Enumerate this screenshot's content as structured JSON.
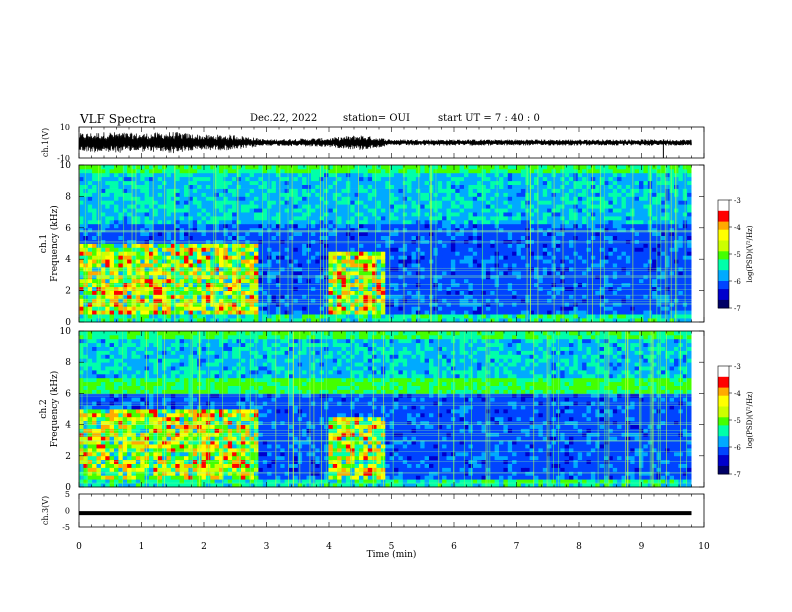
{
  "header": {
    "title": "VLF Spectra",
    "date": "Dec.22, 2022",
    "station": "station= OUI",
    "start": "start UT =  7 : 40 : 0"
  },
  "chart_data": [
    {
      "type": "line",
      "panel": "waveform-ch1",
      "ylabel": "ch.1(V)",
      "ylim": [
        -10,
        10
      ],
      "yticks": [
        "10",
        "-10"
      ],
      "xlim": [
        0,
        10
      ],
      "note_amplitude_envelope": {
        "x_min": [
          0,
          0.5,
          1.0,
          1.5,
          2.0,
          2.5,
          3.0,
          3.5,
          4.0,
          4.5,
          5.0,
          6.0,
          7.0,
          8.0,
          9.0,
          9.8
        ],
        "amplitude_V": [
          6,
          7,
          6,
          7,
          5,
          5,
          2,
          2.5,
          3,
          5,
          2,
          2,
          2,
          2,
          2,
          2
        ]
      },
      "spikes_min": [
        9.35
      ]
    },
    {
      "type": "heatmap",
      "panel": "spectrogram-ch1",
      "ylabel": "ch.1 Frequency (kHz)",
      "xlim": [
        0,
        10
      ],
      "ylim": [
        0,
        10
      ],
      "yticks": [
        "0",
        "2",
        "4",
        "6",
        "8",
        "10"
      ],
      "colorbar": {
        "label": "log(PSD)(V²/Hz)",
        "range": [
          -7,
          -3
        ],
        "ticks": [
          "-3",
          "-4",
          "-5",
          "-6",
          "-7"
        ]
      },
      "data_end_min": 9.8,
      "bursts": [
        {
          "t_start_min": 0,
          "t_end_min": 2.9,
          "f_max_kHz": 5.0
        },
        {
          "t_start_min": 4.0,
          "t_end_min": 4.9,
          "f_max_kHz": 4.5
        }
      ]
    },
    {
      "type": "heatmap",
      "panel": "spectrogram-ch2",
      "ylabel": "ch.2 Frequency (kHz)",
      "xlim": [
        0,
        10
      ],
      "ylim": [
        0,
        10
      ],
      "yticks": [
        "0",
        "2",
        "4",
        "6",
        "8",
        "10"
      ],
      "colorbar": {
        "label": "log(PSD)(V²/Hz)",
        "range": [
          -7,
          -3
        ],
        "ticks": [
          "-3",
          "-4",
          "-5",
          "-6",
          "-7"
        ]
      },
      "data_end_min": 9.8,
      "emission_band_kHz": [
        6.0,
        7.0
      ],
      "bursts": [
        {
          "t_start_min": 0,
          "t_end_min": 2.9,
          "f_max_kHz": 5.0
        },
        {
          "t_start_min": 4.0,
          "t_end_min": 4.9,
          "f_max_kHz": 4.5
        }
      ]
    },
    {
      "type": "line",
      "panel": "waveform-ch3",
      "ylabel": "ch.3(V)",
      "ylim": [
        -5,
        5
      ],
      "yticks": [
        "5",
        "0",
        "-5"
      ],
      "xlim": [
        0,
        10
      ],
      "x": [
        0,
        9.8
      ],
      "y": [
        -0.8,
        -0.8
      ],
      "xlabel": "Time (min)",
      "xticks": [
        "0",
        "1",
        "2",
        "3",
        "4",
        "5",
        "6",
        "7",
        "8",
        "9",
        "10"
      ]
    }
  ],
  "colors": {
    "colormap": [
      "#000066",
      "#0000cc",
      "#0044ff",
      "#00aaff",
      "#00ffaa",
      "#44ff00",
      "#ccff00",
      "#ffff00",
      "#ffaa00",
      "#ff0000",
      "#ffffff"
    ]
  }
}
